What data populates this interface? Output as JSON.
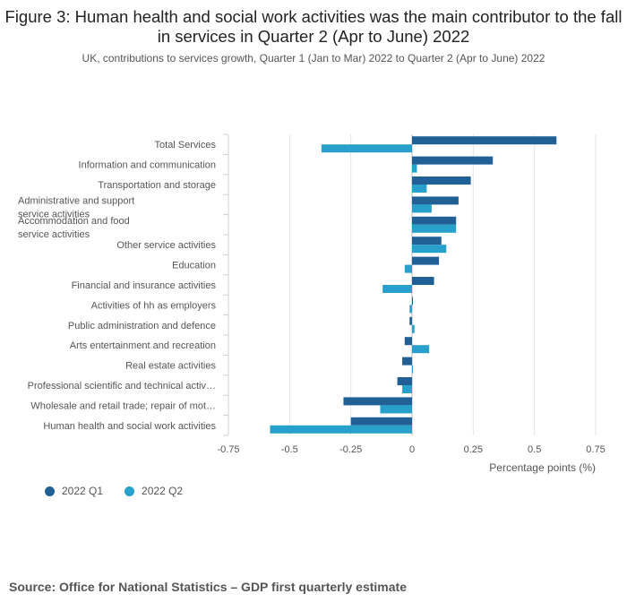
{
  "header": {
    "title": "Figure 3: Human health and social work activities was the main contributor to the fall in services in Quarter 2 (Apr to June) 2022",
    "subtitle": "UK, contributions to services growth, Quarter 1 (Jan to Mar) 2022 to Quarter 2 (Apr to June) 2022"
  },
  "chart_data": {
    "type": "bar",
    "orientation": "horizontal",
    "title": "Figure 3: Human health and social work activities was the main contributor to the fall in services in Quarter 2 (Apr to June) 2022",
    "subtitle": "UK, contributions to services growth, Quarter 1 (Jan to Mar) 2022 to Quarter 2 (Apr to June) 2022",
    "xlabel": "Percentage points (%)",
    "ylabel": "",
    "xlim": [
      -0.75,
      0.75
    ],
    "xticks": [
      "-0.75",
      "-0.5",
      "-0.25",
      "0",
      "0.25",
      "0.5",
      "0.75"
    ],
    "xtick_values": [
      -0.75,
      -0.5,
      -0.25,
      0,
      0.25,
      0.5,
      0.75
    ],
    "grid": true,
    "legend_position": "bottom-left",
    "categories": [
      "Total Services",
      "Information and communication",
      "Transportation and storage",
      "Administrative and support service activities",
      "Accommodation and food service activities",
      "Other service activities",
      "Education",
      "Financial and insurance activities",
      "Activities of hh as employers",
      "Public administration and defence",
      "Arts entertainment and recreation",
      "Real estate activities",
      "Professional scientific and technical activ…",
      "Wholesale and retail trade; repair of mot…",
      "Human health and social work activities"
    ],
    "series": [
      {
        "name": "2022 Q1",
        "color": "#206095",
        "values": [
          0.59,
          0.33,
          0.24,
          0.19,
          0.18,
          0.12,
          0.11,
          0.09,
          0.0,
          -0.01,
          -0.03,
          -0.04,
          -0.06,
          -0.28,
          -0.25
        ]
      },
      {
        "name": "2022 Q2",
        "color": "#27a0cc",
        "values": [
          -0.37,
          0.02,
          0.06,
          0.08,
          0.18,
          0.14,
          -0.03,
          -0.12,
          -0.01,
          0.01,
          0.07,
          0.0,
          -0.04,
          -0.13,
          -0.58
        ]
      }
    ]
  },
  "source": "Source: Office for National Statistics – GDP first quarterly estimate"
}
